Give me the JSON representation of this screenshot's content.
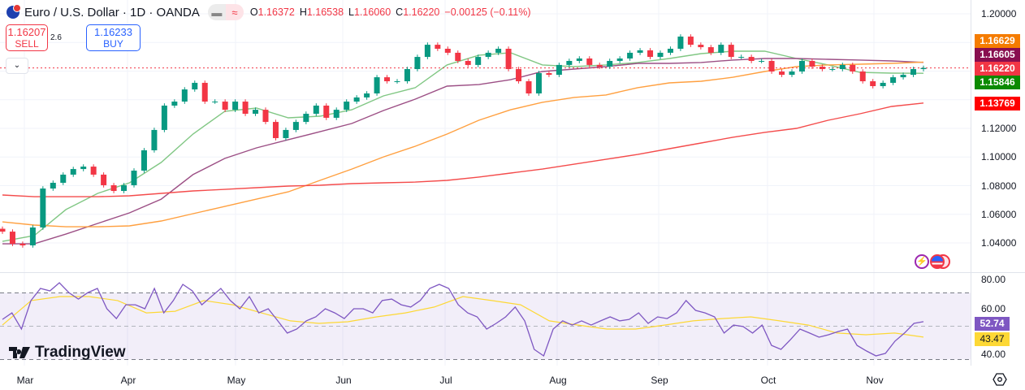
{
  "header": {
    "title": "Euro / U.S. Dollar · 1D · OANDA",
    "open_label": "O",
    "open": "1.16372",
    "high_label": "H",
    "high": "1.16538",
    "low_label": "L",
    "low": "1.16060",
    "close_label": "C",
    "close": "1.16220",
    "change": "−0.00125 (−0.11%)",
    "pill_a": "▬",
    "pill_b": "≈"
  },
  "trade": {
    "sell_price": "1.16207",
    "sell_label": "SELL",
    "spread": "2.6",
    "buy_price": "1.16233",
    "buy_label": "BUY",
    "collapse": "⌄"
  },
  "price_axis": [
    "1.20000",
    "1.12000",
    "1.10000",
    "1.08000",
    "1.06000",
    "1.04000"
  ],
  "rsi_axis": [
    "80.00",
    "60.00",
    "40.00"
  ],
  "tags": [
    {
      "value": "1.16629",
      "color": "#f57c00"
    },
    {
      "value": "1.16605",
      "color": "#880e4f"
    },
    {
      "value": "1.16220",
      "color": "#f23645"
    },
    {
      "value": "1.15846",
      "color": "#0b8a00"
    },
    {
      "value": "1.13769",
      "color": "#ff0000"
    }
  ],
  "rsi_tags": [
    {
      "value": "52.74",
      "color": "#7e57c2"
    },
    {
      "value": "43.47",
      "color": "#fdd835"
    }
  ],
  "x_axis": [
    "Mar",
    "Apr",
    "May",
    "Jun",
    "Jul",
    "Aug",
    "Sep",
    "Oct",
    "Nov"
  ],
  "logo": "TradingView",
  "colors": {
    "up": "#089981",
    "down": "#f23645",
    "ma20": "#81c784",
    "ma50": "#9c4f85",
    "ma100": "#ffa040",
    "ma200": "#f44c4c",
    "rsi": "#7e57c2",
    "rsi_ma": "#fdd835"
  },
  "chart_data": {
    "type": "candlestick",
    "symbol": "EURUSD",
    "interval": "1D",
    "ylim": [
      1.03,
      1.205
    ],
    "closes": [
      1.0479,
      1.0394,
      1.0383,
      1.0508,
      1.078,
      1.082,
      1.0877,
      1.0916,
      1.0933,
      1.0877,
      1.0803,
      1.0763,
      1.0803,
      1.0905,
      1.1047,
      1.1189,
      1.1359,
      1.1387,
      1.1472,
      1.1518,
      1.1387,
      1.1387,
      1.133,
      1.1387,
      1.1302,
      1.133,
      1.1245,
      1.1132,
      1.1189,
      1.1245,
      1.1302,
      1.1359,
      1.1274,
      1.133,
      1.1387,
      1.1416,
      1.1444,
      1.1557,
      1.1529,
      1.1529,
      1.1614,
      1.1699,
      1.1784,
      1.1756,
      1.1728,
      1.1671,
      1.1643,
      1.1699,
      1.1728,
      1.1756,
      1.1614,
      1.1529,
      1.1444,
      1.1586,
      1.1574,
      1.1643,
      1.1671,
      1.1688,
      1.1643,
      1.1631,
      1.1671,
      1.1688,
      1.1728,
      1.1745,
      1.1699,
      1.1728,
      1.1756,
      1.1841,
      1.1784,
      1.1767,
      1.1728,
      1.1784,
      1.1699,
      1.1699,
      1.1671,
      1.1671,
      1.1597,
      1.1574,
      1.1597,
      1.1671,
      1.1631,
      1.1614,
      1.1614,
      1.1643,
      1.1597,
      1.1529,
      1.1495,
      1.1518,
      1.1557,
      1.1574,
      1.1614,
      1.1622
    ],
    "last_price": 1.1622,
    "ma_lines": [
      {
        "color": "#81c784",
        "values": [
          1.0411,
          1.0451,
          1.0633,
          1.0746,
          1.082,
          1.0962,
          1.116,
          1.1319,
          1.1342,
          1.1274,
          1.1285,
          1.133,
          1.1427,
          1.1484,
          1.1643,
          1.1711,
          1.1728,
          1.1643,
          1.1631,
          1.1643,
          1.166,
          1.1688,
          1.1722,
          1.1739,
          1.1739,
          1.1688,
          1.1643,
          1.1591,
          1.1586,
          1.15846
        ]
      },
      {
        "color": "#9c4f85",
        "values": [
          1.0394,
          1.0394,
          1.0462,
          1.0536,
          1.061,
          1.0706,
          1.0877,
          1.099,
          1.1064,
          1.1121,
          1.1177,
          1.1234,
          1.1325,
          1.1404,
          1.1495,
          1.1506,
          1.154,
          1.1597,
          1.1614,
          1.1631,
          1.1654,
          1.1654,
          1.166,
          1.1677,
          1.1688,
          1.1688,
          1.1682,
          1.1677,
          1.1671,
          1.16605
        ]
      },
      {
        "color": "#ffa040",
        "values": [
          1.0547,
          1.0525,
          1.0513,
          1.0513,
          1.0519,
          1.0553,
          1.0604,
          1.0655,
          1.0706,
          1.0757,
          1.0837,
          1.0916,
          1.1001,
          1.1075,
          1.116,
          1.1257,
          1.133,
          1.1382,
          1.1416,
          1.1433,
          1.1484,
          1.1518,
          1.1529,
          1.1557,
          1.1597,
          1.1631,
          1.1643,
          1.1648,
          1.1654,
          1.16629
        ]
      },
      {
        "color": "#f44c4c",
        "values": [
          1.0735,
          1.0723,
          1.0723,
          1.0723,
          1.0729,
          1.0746,
          1.0763,
          1.0774,
          1.0786,
          1.0797,
          1.0803,
          1.0814,
          1.082,
          1.0825,
          1.0837,
          1.086,
          1.0888,
          1.0916,
          1.095,
          1.0984,
          1.1018,
          1.1058,
          1.1098,
          1.1138,
          1.1172,
          1.12,
          1.1257,
          1.1302,
          1.1353,
          1.13769
        ]
      }
    ],
    "rsi": {
      "ylim": [
        26,
        82
      ],
      "band": [
        30,
        70
      ],
      "mid": 50,
      "values": [
        54.1,
        58.0,
        48.3,
        65.4,
        72.7,
        71.2,
        76.1,
        70.2,
        66.3,
        70.2,
        72.7,
        60.5,
        54.6,
        62.9,
        62.9,
        60.5,
        72.7,
        58.0,
        65.4,
        75.1,
        71.2,
        62.9,
        67.8,
        72.7,
        65.4,
        60.5,
        67.8,
        58.0,
        60.5,
        53.2,
        45.9,
        48.3,
        53.2,
        55.6,
        60.5,
        58.0,
        54.6,
        60.5,
        60.5,
        58.0,
        65.4,
        66.3,
        62.9,
        61.5,
        65.4,
        72.7,
        75.1,
        72.7,
        62.9,
        58.0,
        55.6,
        48.3,
        51.7,
        55.6,
        61.5,
        53.2,
        36.1,
        32.2,
        48.3,
        53.2,
        50.7,
        53.2,
        50.7,
        53.2,
        55.6,
        53.2,
        54.1,
        58.0,
        51.7,
        55.6,
        54.6,
        58.0,
        65.4,
        59.5,
        58.0,
        55.6,
        45.9,
        50.7,
        49.8,
        45.9,
        50.7,
        38.5,
        36.1,
        42.0,
        48.3,
        45.9,
        43.4,
        44.9,
        46.8,
        48.3,
        38.5,
        35.1,
        32.2,
        33.7,
        41.0,
        45.9,
        51.7,
        52.74
      ],
      "ma": [
        50.7,
        65.4,
        67.8,
        67.8,
        65.4,
        58.0,
        59.0,
        65.4,
        62.9,
        58.0,
        53.2,
        51.7,
        52.7,
        55.6,
        58.0,
        61.5,
        67.8,
        65.4,
        62.9,
        53.2,
        50.7,
        48.3,
        48.3,
        50.7,
        53.2,
        54.6,
        55.6,
        53.2,
        50.7,
        45.9,
        44.9,
        45.9,
        43.47
      ]
    }
  }
}
